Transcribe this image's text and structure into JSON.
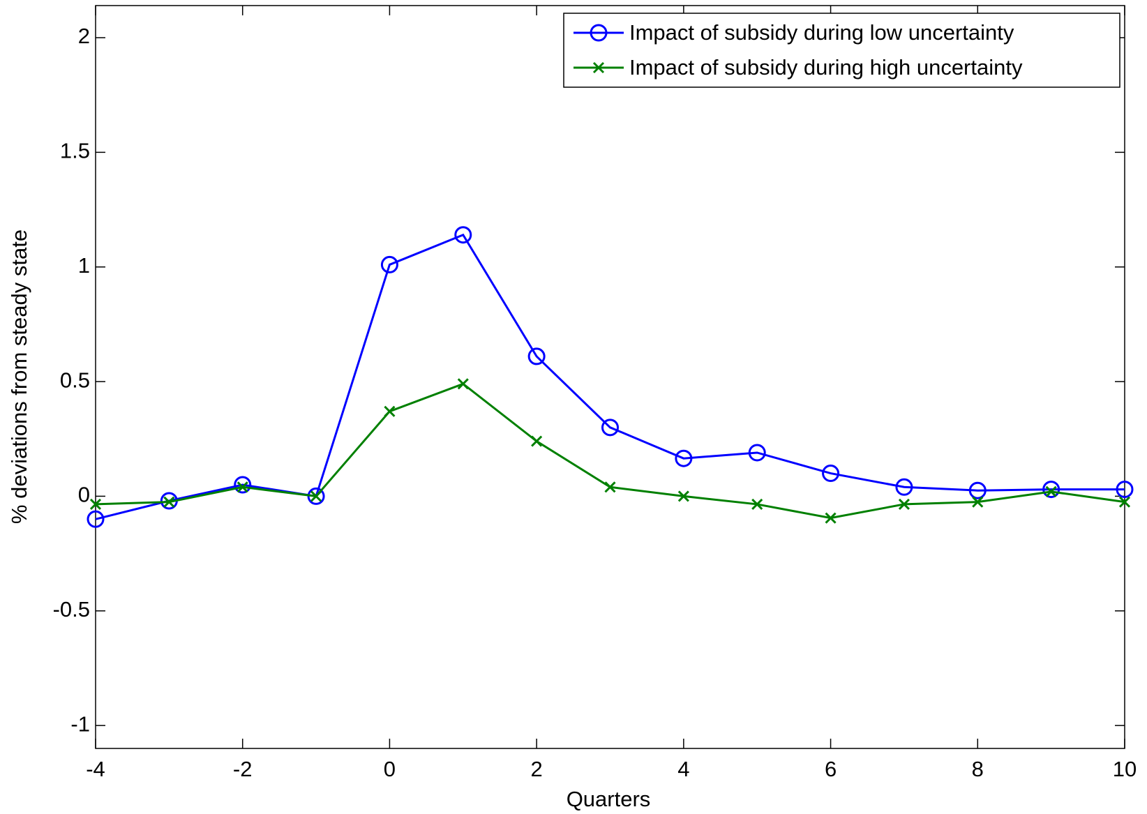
{
  "chart_data": {
    "type": "line",
    "x_label": "Quarters",
    "y_label": "% deviations from steady state",
    "x": [
      -4,
      -3,
      -2,
      -1,
      0,
      1,
      2,
      3,
      4,
      5,
      6,
      7,
      8,
      9,
      10
    ],
    "series": [
      {
        "name": "Impact of subsidy during low uncertainty",
        "color": "#0000ff",
        "marker": "circle",
        "values": [
          -0.1,
          -0.02,
          0.05,
          0,
          1.01,
          1.14,
          0.61,
          0.3,
          0.165,
          0.19,
          0.1,
          0.04,
          0.025,
          0.03,
          0.03
        ]
      },
      {
        "name": "Impact of subsidy during high uncertainty",
        "color": "#008000",
        "marker": "x",
        "values": [
          -0.035,
          -0.025,
          0.04,
          0,
          0.37,
          0.49,
          0.24,
          0.04,
          0,
          -0.035,
          -0.095,
          -0.035,
          -0.025,
          0.02,
          -0.025
        ]
      }
    ],
    "xlim": [
      -4,
      10
    ],
    "xticks": [
      -4,
      -2,
      0,
      2,
      4,
      6,
      8,
      10
    ],
    "ylim": [
      -1.1,
      2.14
    ],
    "yticks": [
      -1,
      -0.5,
      0,
      0.5,
      1,
      1.5,
      2
    ],
    "grid": false,
    "legend": "upper right"
  }
}
